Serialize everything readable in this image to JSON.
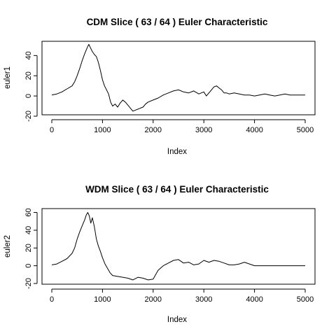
{
  "chart_data": [
    {
      "type": "line",
      "title": "CDM Slice ( 63 / 64 ) Euler Characteristic",
      "xlabel": "Index",
      "ylabel": "euler1",
      "xlim": [
        0,
        5000
      ],
      "ylim": [
        -20,
        52
      ],
      "xticks": [
        0,
        1000,
        2000,
        3000,
        4000,
        5000
      ],
      "yticks": [
        -20,
        0,
        20,
        40
      ],
      "x": [
        0,
        100,
        200,
        300,
        400,
        450,
        500,
        550,
        600,
        650,
        700,
        730,
        760,
        800,
        840,
        880,
        920,
        960,
        1000,
        1040,
        1080,
        1120,
        1160,
        1200,
        1250,
        1300,
        1350,
        1400,
        1450,
        1500,
        1550,
        1600,
        1650,
        1700,
        1750,
        1800,
        1850,
        1900,
        2000,
        2100,
        2200,
        2300,
        2400,
        2500,
        2600,
        2700,
        2800,
        2900,
        3000,
        3050,
        3100,
        3150,
        3200,
        3250,
        3300,
        3350,
        3400,
        3450,
        3500,
        3600,
        3700,
        3800,
        3900,
        4000,
        4100,
        4200,
        4300,
        4400,
        4500,
        4600,
        4700,
        4800,
        4900,
        5000
      ],
      "y": [
        1,
        2,
        4,
        7,
        10,
        14,
        20,
        27,
        35,
        42,
        48,
        51,
        48,
        44,
        41,
        39,
        33,
        25,
        16,
        10,
        6,
        2,
        -6,
        -10,
        -8,
        -11,
        -7,
        -4,
        -6,
        -9,
        -12,
        -15,
        -14,
        -13,
        -12,
        -11,
        -8,
        -6,
        -4,
        -2,
        1,
        3,
        5,
        6,
        4,
        3,
        5,
        2,
        4,
        0,
        3,
        6,
        9,
        10,
        8,
        6,
        3,
        3,
        2,
        3,
        2,
        1,
        1,
        0,
        1,
        2,
        1,
        0,
        1,
        2,
        1,
        1,
        1,
        1
      ]
    },
    {
      "type": "line",
      "title": "WDM Slice ( 63 / 64 ) Euler Characteristic",
      "xlabel": "Index",
      "ylabel": "euler2",
      "xlim": [
        0,
        5000
      ],
      "ylim": [
        -20,
        62
      ],
      "xticks": [
        0,
        1000,
        2000,
        3000,
        4000,
        5000
      ],
      "yticks": [
        -20,
        0,
        20,
        40,
        60
      ],
      "x": [
        0,
        100,
        200,
        300,
        400,
        450,
        500,
        550,
        600,
        650,
        680,
        710,
        740,
        770,
        800,
        840,
        880,
        920,
        960,
        1000,
        1050,
        1100,
        1150,
        1200,
        1300,
        1400,
        1500,
        1600,
        1700,
        1800,
        1900,
        2000,
        2050,
        2100,
        2200,
        2300,
        2400,
        2500,
        2600,
        2700,
        2800,
        2900,
        3000,
        3100,
        3200,
        3300,
        3400,
        3500,
        3600,
        3700,
        3800,
        3900,
        4000,
        4500,
        5000
      ],
      "y": [
        1,
        2,
        5,
        8,
        14,
        20,
        30,
        38,
        45,
        52,
        57,
        60,
        56,
        48,
        54,
        44,
        30,
        22,
        16,
        9,
        2,
        -3,
        -8,
        -11,
        -12,
        -13,
        -14,
        -16,
        -13,
        -14,
        -16,
        -15,
        -10,
        -5,
        0,
        3,
        6,
        7,
        3,
        4,
        1,
        2,
        6,
        4,
        6,
        5,
        3,
        1,
        1,
        2,
        4,
        2,
        0,
        0,
        0
      ]
    }
  ]
}
